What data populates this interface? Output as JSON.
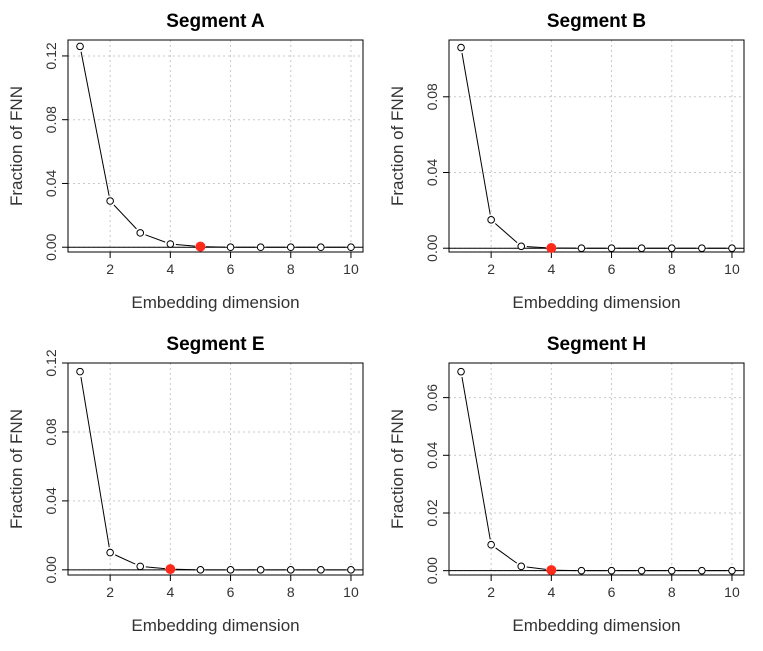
{
  "chart_data": [
    {
      "type": "line",
      "title": "Segment A",
      "xlabel": "Embedding dimension",
      "ylabel": "Fraction of FNN",
      "x": [
        1,
        2,
        3,
        4,
        5,
        6,
        7,
        8,
        9,
        10
      ],
      "values": [
        0.126,
        0.029,
        0.009,
        0.002,
        0.0004,
        0.0,
        0.0,
        0.0,
        0.0,
        0.0
      ],
      "highlight_index": 4,
      "xlim": [
        0.6,
        10.4
      ],
      "ylim": [
        -0.003,
        0.13
      ],
      "xticks": [
        2,
        4,
        6,
        8,
        10
      ],
      "yticks": [
        0.0,
        0.04,
        0.08,
        0.12
      ],
      "ytick_labels": [
        "0.00",
        "0.04",
        "0.08",
        "0.12"
      ],
      "grid": true,
      "marker_color": "#ff2a1a"
    },
    {
      "type": "line",
      "title": "Segment B",
      "xlabel": "Embedding dimension",
      "ylabel": "Fraction of FNN",
      "x": [
        1,
        2,
        3,
        4,
        5,
        6,
        7,
        8,
        9,
        10
      ],
      "values": [
        0.106,
        0.015,
        0.001,
        0.0001,
        0.0,
        0.0,
        0.0,
        0.0,
        0.0,
        0.0
      ],
      "highlight_index": 3,
      "xlim": [
        0.6,
        10.4
      ],
      "ylim": [
        -0.002,
        0.11
      ],
      "xticks": [
        2,
        4,
        6,
        8,
        10
      ],
      "yticks": [
        0.0,
        0.04,
        0.08
      ],
      "ytick_labels": [
        "0.00",
        "0.04",
        "0.08"
      ],
      "grid": true,
      "marker_color": "#ff2a1a"
    },
    {
      "type": "line",
      "title": "Segment E",
      "xlabel": "Embedding dimension",
      "ylabel": "Fraction of FNN",
      "x": [
        1,
        2,
        3,
        4,
        5,
        6,
        7,
        8,
        9,
        10
      ],
      "values": [
        0.115,
        0.01,
        0.002,
        0.0004,
        0.0,
        0.0,
        0.0,
        0.0,
        0.0,
        0.0
      ],
      "highlight_index": 3,
      "xlim": [
        0.6,
        10.4
      ],
      "ylim": [
        -0.003,
        0.12
      ],
      "xticks": [
        2,
        4,
        6,
        8,
        10
      ],
      "yticks": [
        0.0,
        0.04,
        0.08,
        0.12
      ],
      "ytick_labels": [
        "0.00",
        "0.04",
        "0.08",
        "0.12"
      ],
      "grid": true,
      "marker_color": "#ff2a1a"
    },
    {
      "type": "line",
      "title": "Segment H",
      "xlabel": "Embedding dimension",
      "ylabel": "Fraction of FNN",
      "x": [
        1,
        2,
        3,
        4,
        5,
        6,
        7,
        8,
        9,
        10
      ],
      "values": [
        0.069,
        0.009,
        0.0015,
        0.0002,
        0.0,
        0.0,
        0.0,
        0.0,
        0.0,
        0.0
      ],
      "highlight_index": 3,
      "xlim": [
        0.6,
        10.4
      ],
      "ylim": [
        -0.0015,
        0.072
      ],
      "xticks": [
        2,
        4,
        6,
        8,
        10
      ],
      "yticks": [
        0.0,
        0.02,
        0.04,
        0.06
      ],
      "ytick_labels": [
        "0.00",
        "0.02",
        "0.04",
        "0.06"
      ],
      "grid": true,
      "marker_color": "#ff2a1a"
    }
  ]
}
